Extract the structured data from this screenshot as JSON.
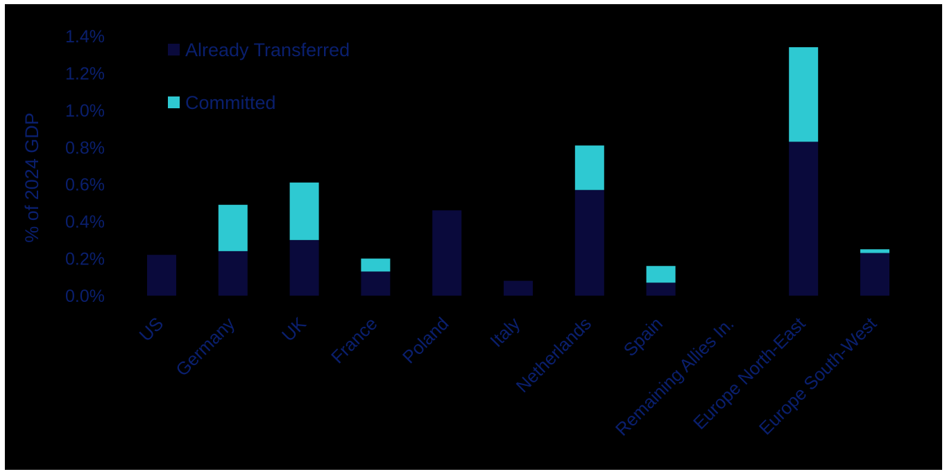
{
  "chart_data": {
    "type": "bar",
    "stacked": true,
    "title": "",
    "xlabel": "",
    "ylabel": "% of 2024 GDP",
    "ylim": [
      0,
      1.4
    ],
    "yticks": [
      0.0,
      0.2,
      0.4,
      0.6,
      0.8,
      1.0,
      1.2,
      1.4
    ],
    "ytick_labels": [
      "0.0%",
      "0.2%",
      "0.4%",
      "0.6%",
      "0.8%",
      "1.0%",
      "1.2%",
      "1.4%"
    ],
    "categories": [
      "US",
      "Germany",
      "UK",
      "France",
      "Poland",
      "Italy",
      "Netherlands",
      "Spain",
      "Remaining Allies In.",
      "Europe North-East",
      "Europe South-West"
    ],
    "series": [
      {
        "name": "Already Transferred",
        "color": "#0a0a3c",
        "values": [
          0.22,
          0.24,
          0.3,
          0.13,
          0.46,
          0.08,
          0.57,
          0.07,
          0.0,
          0.83,
          0.23
        ]
      },
      {
        "name": "Committed",
        "color": "#2ec9d2",
        "values": [
          0.0,
          0.25,
          0.31,
          0.07,
          0.0,
          0.0,
          0.24,
          0.09,
          0.0,
          0.51,
          0.02
        ]
      }
    ],
    "legend_position": "top-left",
    "grid": false,
    "text_color": "#0a1f6e",
    "background": "#000000"
  }
}
